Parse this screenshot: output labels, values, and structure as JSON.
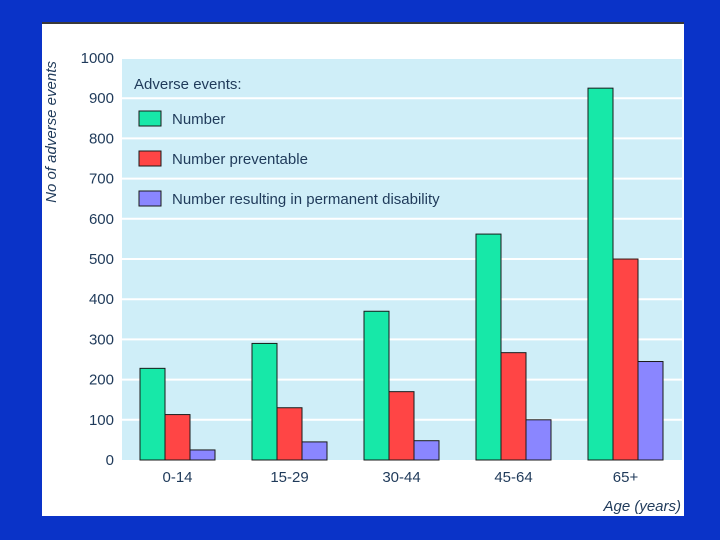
{
  "chart_data": {
    "type": "bar",
    "title": "",
    "xlabel": "Age (years)",
    "ylabel": "No of adverse events",
    "ylim": [
      0,
      1000
    ],
    "yticks": [
      0,
      100,
      200,
      300,
      400,
      500,
      600,
      700,
      800,
      900,
      1000
    ],
    "categories": [
      "0-14",
      "15-29",
      "30-44",
      "45-64",
      "65+"
    ],
    "legend_title": "Adverse events:",
    "legend_position": "top-left",
    "series": [
      {
        "name": "Number",
        "color": "#17e8a8",
        "values": [
          228,
          290,
          370,
          562,
          925
        ]
      },
      {
        "name": "Number preventable",
        "color": "#ff4545",
        "values": [
          113,
          130,
          170,
          267,
          500
        ]
      },
      {
        "name": "Number resulting in permanent disability",
        "color": "#8a86ff",
        "values": [
          25,
          45,
          48,
          100,
          245
        ]
      }
    ],
    "grid": true
  },
  "style": {
    "background": "#0a33c8",
    "plot_background": "#cfeef8",
    "gridline": "#ffffff",
    "text": "#1f3a5a"
  }
}
